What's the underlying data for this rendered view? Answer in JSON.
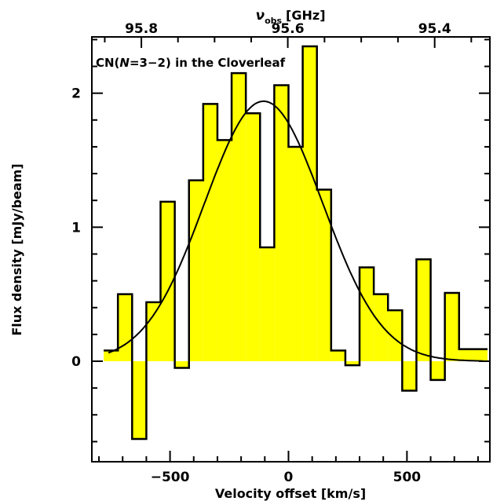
{
  "chart_data": {
    "type": "bar",
    "style": "histogram-step",
    "title": "CN(N=3−2) in the Cloverleaf",
    "title_parts": {
      "pre": "CN(",
      "italic": "N",
      "post": "=3−2) in the Cloverleaf"
    },
    "xlabel": "Velocity offset [km/s]",
    "ylabel": "Flux density [mJy/beam]",
    "top_xlabel": {
      "symbol": "ν",
      "subscript": "obs",
      "unit": "[GHz]"
    },
    "xlim": [
      -830,
      850
    ],
    "ylim": [
      -0.75,
      2.42
    ],
    "x_ticks": [
      -500,
      0,
      500
    ],
    "x_tick_labels": [
      "−500",
      "0",
      "500"
    ],
    "y_ticks": [
      0,
      1,
      2
    ],
    "y_tick_labels": [
      "0",
      "1",
      "2"
    ],
    "top_ticks": [
      95.8,
      95.6,
      95.4
    ],
    "top_tick_labels": [
      "95.8",
      "95.6",
      "95.4"
    ],
    "top_tick_velocity_positions": [
      -621,
      -3,
      617
    ],
    "grid": false,
    "bin_edges": [
      -780,
      -720,
      -660,
      -600,
      -540,
      -480,
      -420,
      -360,
      -300,
      -240,
      -180,
      -120,
      -60,
      0,
      60,
      120,
      180,
      240,
      300,
      360,
      420,
      480,
      540,
      600,
      660,
      720,
      780,
      840
    ],
    "values": [
      0.08,
      0.5,
      -0.58,
      0.44,
      1.19,
      -0.05,
      1.35,
      1.92,
      1.65,
      2.15,
      1.85,
      0.85,
      2.06,
      1.6,
      2.35,
      1.28,
      0.08,
      -0.03,
      0.7,
      0.5,
      0.38,
      -0.22,
      0.76,
      -0.14,
      0.51,
      0.09,
      0.09
    ],
    "fill_color": "#ffff00",
    "outline_color": "#000000",
    "fit": {
      "type": "gaussian",
      "amplitude": 1.94,
      "center": -105,
      "sigma": 250,
      "x_range": [
        -760,
        820
      ]
    }
  }
}
